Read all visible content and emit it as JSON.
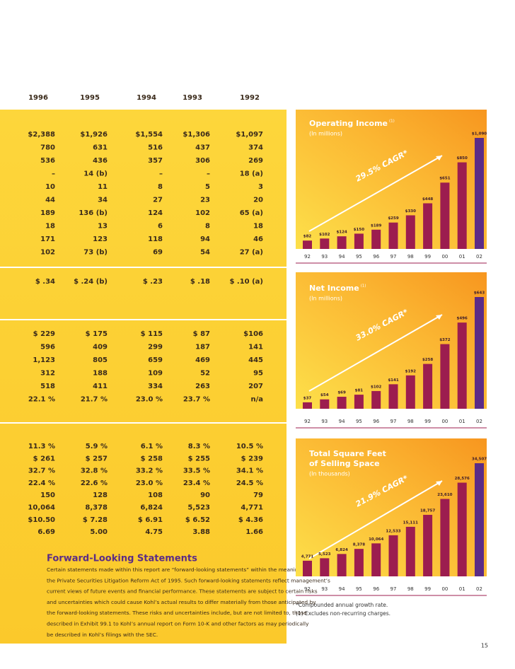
{
  "table": {
    "header": [
      "1996",
      "1995",
      "1994",
      "1993",
      "1992"
    ],
    "sections": [
      [
        [
          "$2,388",
          "$1,926",
          "$1,554",
          "$1,306",
          "$1,097"
        ],
        [
          "780",
          "631",
          "516",
          "437",
          "374"
        ],
        [
          "536",
          "436",
          "357",
          "306",
          "269"
        ],
        [
          "–",
          "14 (b)",
          "–",
          "–",
          "18 (a)"
        ],
        [
          "10",
          "11",
          "8",
          "5",
          "3"
        ],
        [
          "44",
          "34",
          "27",
          "23",
          "20"
        ],
        [
          "189",
          "136 (b)",
          "124",
          "102",
          "65 (a)"
        ],
        [
          "18",
          "13",
          "6",
          "8",
          "18"
        ],
        [
          "171",
          "123",
          "118",
          "94",
          "46"
        ],
        [
          "102",
          "73 (b)",
          "69",
          "54",
          "27 (a)"
        ]
      ],
      [
        [
          "$ .34",
          "$ .24 (b)",
          "$ .23",
          "$ .18",
          "$ .10 (a)"
        ]
      ],
      [
        [
          "$ 229",
          "$ 175",
          "$ 115",
          "$ 87",
          "$106"
        ],
        [
          "596",
          "409",
          "299",
          "187",
          "141"
        ],
        [
          "1,123",
          "805",
          "659",
          "469",
          "445"
        ],
        [
          "312",
          "188",
          "109",
          "52",
          "95"
        ],
        [
          "518",
          "411",
          "334",
          "263",
          "207"
        ],
        [
          "22.1 %",
          "21.7 %",
          "23.0 %",
          "23.7 %",
          "n/a"
        ]
      ],
      [
        [
          "11.3 %",
          "5.9 %",
          "6.1 %",
          "8.3 %",
          "10.5 %"
        ],
        [
          "$ 261",
          "$ 257",
          "$ 258",
          "$ 255",
          "$ 239"
        ],
        [
          "32.7 %",
          "32.8 %",
          "33.2 %",
          "33.5 %",
          "34.1 %"
        ],
        [
          "22.4 %",
          "22.6 %",
          "23.0 %",
          "23.4 %",
          "24.5 %"
        ],
        [
          "150",
          "128",
          "108",
          "90",
          "79"
        ],
        [
          "10,064",
          "8,378",
          "6,824",
          "5,523",
          "4,771"
        ],
        [
          "$10.50",
          "$ 7.28",
          "$ 6.91",
          "$ 6.52",
          "$ 4.36"
        ],
        [
          "6.69",
          "5.00",
          "4.75",
          "3.88",
          "1.66"
        ]
      ]
    ]
  },
  "forward_looking": {
    "title": "Forward-Looking Statements",
    "lines": [
      "Certain statements made within this report are “forward-looking statements” within the meaning of",
      "the Private Securities Litigation Reform Act of 1995. Such forward-looking statements reflect management’s",
      "current views of future events and financial performance. These statements are subject to certain risks",
      "and uncertainties which could cause Kohl’s actual results to differ materially from those anticipated by",
      "the forward-looking statements. These risks and uncertainties include, but are not limited to, those",
      "described in Exhibit 99.1 to Kohl’s annual report on Form 10-K and other factors as may periodically",
      "be described in Kohl’s filings with the SEC."
    ]
  },
  "chart_data": [
    {
      "type": "bar",
      "title": "Operating Income",
      "title_note": "(1)",
      "subtitle": "(In millions)",
      "annotation": "29.5% CAGR*",
      "categories": [
        "92",
        "93",
        "94",
        "95",
        "96",
        "97",
        "98",
        "99",
        "00",
        "01",
        "02"
      ],
      "values": [
        82,
        102,
        124,
        150,
        189,
        259,
        330,
        448,
        651,
        850,
        1090
      ],
      "value_labels": [
        "$82",
        "$102",
        "$124",
        "$150",
        "$189",
        "$259",
        "$330",
        "$448",
        "$651",
        "$850",
        "$1,090"
      ],
      "colors": [
        "#9c1d4f",
        "#9c1d4f",
        "#9c1d4f",
        "#9c1d4f",
        "#9c1d4f",
        "#9c1d4f",
        "#9c1d4f",
        "#9c1d4f",
        "#9c1d4f",
        "#9c1d4f",
        "#5b2c86"
      ]
    },
    {
      "type": "bar",
      "title": "Net Income",
      "title_note": "(1)",
      "subtitle": "(In millions)",
      "annotation": "33.0% CAGR*",
      "categories": [
        "92",
        "93",
        "94",
        "95",
        "96",
        "97",
        "98",
        "99",
        "00",
        "01",
        "02"
      ],
      "values": [
        37,
        54,
        69,
        81,
        102,
        141,
        192,
        258,
        372,
        496,
        643
      ],
      "value_labels": [
        "$37",
        "$54",
        "$69",
        "$81",
        "$102",
        "$141",
        "$192",
        "$258",
        "$372",
        "$496",
        "$643"
      ],
      "colors": [
        "#9c1d4f",
        "#9c1d4f",
        "#9c1d4f",
        "#9c1d4f",
        "#9c1d4f",
        "#9c1d4f",
        "#9c1d4f",
        "#9c1d4f",
        "#9c1d4f",
        "#9c1d4f",
        "#5b2c86"
      ]
    },
    {
      "type": "bar",
      "title": [
        "Total Square Feet",
        "of Selling Space"
      ],
      "subtitle": "(In thousands)",
      "annotation": "21.9% CAGR*",
      "categories": [
        "92",
        "93",
        "94",
        "95",
        "96",
        "97",
        "98",
        "99",
        "00",
        "01",
        "02"
      ],
      "values": [
        4771,
        5523,
        6824,
        8378,
        10064,
        12533,
        15111,
        18757,
        23610,
        28576,
        34507
      ],
      "value_labels": [
        "4,771",
        "5,523",
        "6,824",
        "8,378",
        "10,064",
        "12,533",
        "15,111",
        "18,757",
        "23,610",
        "28,576",
        "34,507"
      ],
      "colors": [
        "#9c1d4f",
        "#9c1d4f",
        "#9c1d4f",
        "#9c1d4f",
        "#9c1d4f",
        "#9c1d4f",
        "#9c1d4f",
        "#9c1d4f",
        "#9c1d4f",
        "#9c1d4f",
        "#5b2c86"
      ]
    }
  ],
  "footnotes": [
    "*Compounded annual growth rate.",
    "(1) Excludes non-recurring charges."
  ],
  "page_number": "15"
}
